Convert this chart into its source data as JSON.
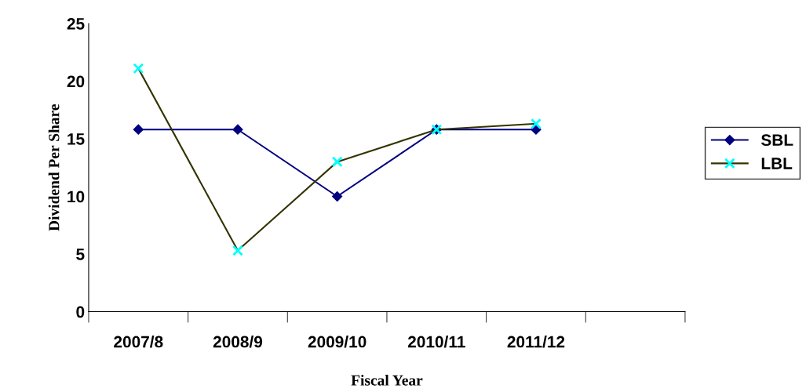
{
  "chart_data": {
    "type": "line",
    "xlabel": "Fiscal Year",
    "ylabel": "Dividend Per Share",
    "categories": [
      "2007/8",
      "2008/9",
      "2009/10",
      "2010/11",
      "2011/12",
      null
    ],
    "series": [
      {
        "name": "SBL",
        "color": "#000080",
        "marker": "diamond",
        "values": [
          15.8,
          15.8,
          10,
          15.8,
          15.8,
          null
        ]
      },
      {
        "name": "LBL",
        "color": "#333300",
        "colors": [
          "#00ffff",
          "#00ffff",
          "#00ffff",
          "#00ffff",
          "#00ffff",
          "#00ffff"
        ],
        "marker": "cross",
        "values": [
          21.1,
          5.3,
          13,
          15.8,
          16.3,
          null
        ]
      }
    ],
    "ylim": [
      0,
      25
    ],
    "yticks": [
      0,
      5,
      10,
      15,
      20,
      25
    ],
    "grid": false,
    "legend": "right"
  }
}
